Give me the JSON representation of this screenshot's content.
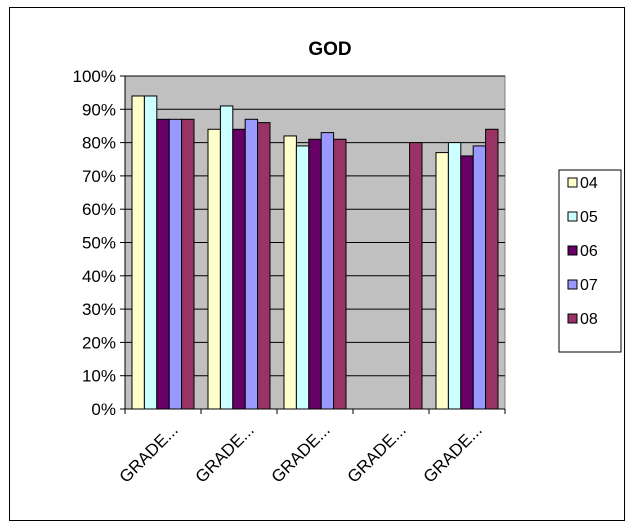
{
  "chart_data": {
    "type": "bar",
    "title": "GOD",
    "categories": [
      "GRADE...",
      "GRADE...",
      "GRADE...",
      "GRADE...",
      "GRADE..."
    ],
    "series": [
      {
        "name": "04",
        "color": "#FFFFCC",
        "values": [
          94,
          84,
          82,
          null,
          77
        ]
      },
      {
        "name": "05",
        "color": "#CCFFFF",
        "values": [
          94,
          91,
          79,
          null,
          80
        ]
      },
      {
        "name": "06",
        "color": "#660066",
        "values": [
          87,
          84,
          81,
          null,
          76
        ]
      },
      {
        "name": "07",
        "color": "#9999FF",
        "values": [
          87,
          87,
          83,
          null,
          79
        ]
      },
      {
        "name": "08",
        "color": "#993366",
        "values": [
          87,
          86,
          81,
          80,
          84
        ]
      }
    ],
    "ylim": [
      0,
      100
    ],
    "yticks": [
      "0%",
      "10%",
      "20%",
      "30%",
      "40%",
      "50%",
      "60%",
      "70%",
      "80%",
      "90%",
      "100%"
    ],
    "plot_background": "#C0C0C0",
    "grid": true,
    "legend": "right"
  }
}
